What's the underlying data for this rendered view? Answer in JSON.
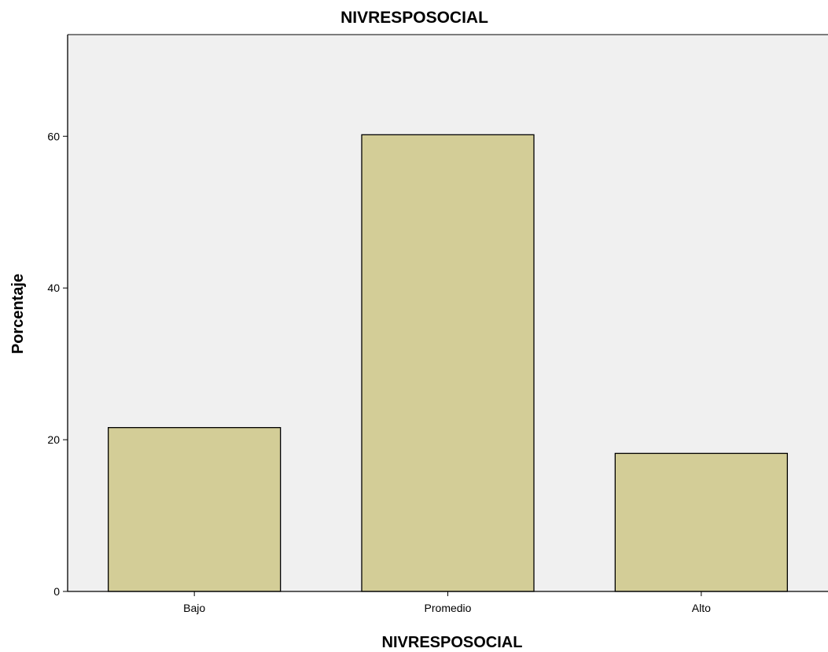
{
  "chart_data": {
    "type": "bar",
    "title": "NIVRESPOSOCIAL",
    "xlabel": "NIVRESPOSOCIAL",
    "ylabel": "Porcentaje",
    "categories": [
      "Bajo",
      "Promedio",
      "Alto"
    ],
    "values": [
      21.6,
      60.2,
      18.2
    ],
    "ylim": [
      0,
      73.4
    ],
    "yticks": [
      0,
      20,
      40,
      60
    ],
    "ytick_labels": [
      "0",
      "20",
      "40",
      "60"
    ],
    "grid": false,
    "legend": "none",
    "colors": {
      "bar_fill": "#d3cd97",
      "bar_stroke": "#000000",
      "plot_background": "#f0f0f0",
      "axis": "#000000"
    }
  }
}
